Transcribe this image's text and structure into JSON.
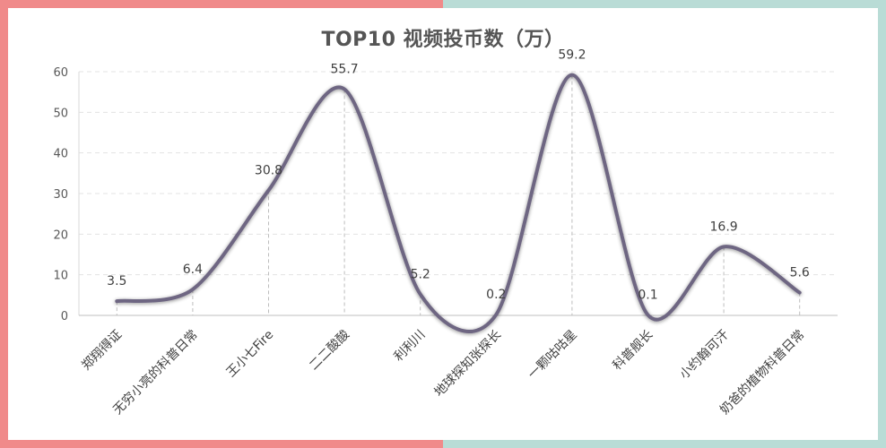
{
  "chart_data": {
    "type": "line",
    "title": "TOP10 视频投币数（万）",
    "categories": [
      "郑翔得证",
      "无穷小亮的科普日常",
      "王小七Fire",
      "二二酸酸",
      "利利川",
      "地球探知张探长",
      "一颗咕咕星",
      "科普舰长",
      "小约翰可汗",
      "奶爸的植物科普日常"
    ],
    "series": [
      {
        "values": [
          3.5,
          6.4,
          30.8,
          55.7,
          5.2,
          0.2,
          59.2,
          0.1,
          16.9,
          5.6
        ]
      }
    ],
    "data_labels": [
      "3.5",
      "6.4",
      "30.8",
      "55.7",
      "5.2",
      "0.2",
      "59.2",
      "0.1",
      "16.9",
      "5.6"
    ],
    "ylim": [
      0,
      60
    ],
    "yticks": [
      "0",
      "10",
      "20",
      "30",
      "40",
      "50",
      "60"
    ],
    "grid": true,
    "smooth": true,
    "line_color": "#6e6682"
  }
}
